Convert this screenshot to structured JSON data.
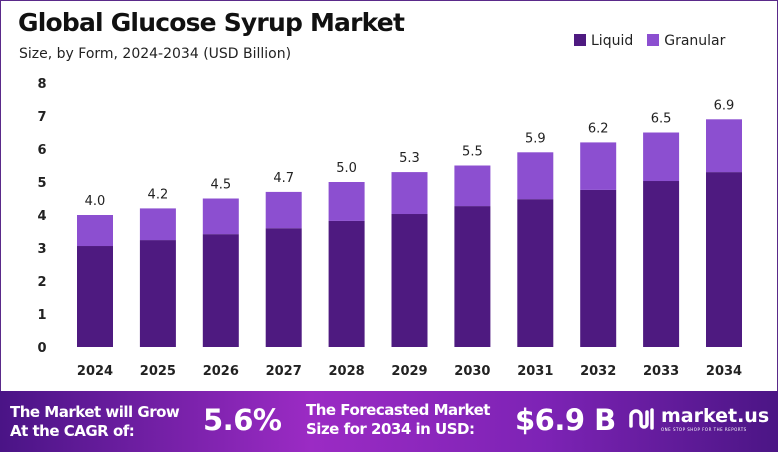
{
  "title": "Global Glucose Syrup Market",
  "subtitle": "Size, by Form, 2024-2034 (USD Billion)",
  "colors": {
    "liquid": "#4e1a80",
    "granular": "#8c4fd0",
    "footer": "#8a27bf"
  },
  "chart_data": {
    "type": "bar",
    "stacked": true,
    "categories": [
      "2024",
      "2025",
      "2026",
      "2027",
      "2028",
      "2029",
      "2030",
      "2031",
      "2032",
      "2033",
      "2034"
    ],
    "series": [
      {
        "name": "Liquid",
        "values": [
          3.06,
          3.24,
          3.42,
          3.6,
          3.82,
          4.03,
          4.27,
          4.48,
          4.76,
          5.03,
          5.3
        ]
      },
      {
        "name": "Granular",
        "values": [
          0.94,
          0.96,
          1.08,
          1.1,
          1.18,
          1.27,
          1.23,
          1.42,
          1.44,
          1.47,
          1.6
        ]
      }
    ],
    "totals": [
      "4.0",
      "4.2",
      "4.5",
      "4.7",
      "5.0",
      "5.3",
      "5.5",
      "5.9",
      "6.2",
      "6.5",
      "6.9"
    ],
    "yticks": [
      "0",
      "1",
      "2",
      "3",
      "4",
      "5",
      "6",
      "7",
      "8"
    ],
    "ylim": [
      0,
      8
    ],
    "grid": false,
    "legend": "top-right"
  },
  "footer": {
    "cagr_label_1": "The Market will Grow",
    "cagr_label_2": "At the CAGR of:",
    "cagr_value": "5.6%",
    "forecast_label_1": "The Forecasted Market",
    "forecast_label_2": "Size for 2034 in USD:",
    "forecast_value": "$6.9 B",
    "logo_name": "market.us",
    "logo_tagline": "ONE STOP SHOP FOR THE REPORTS"
  }
}
